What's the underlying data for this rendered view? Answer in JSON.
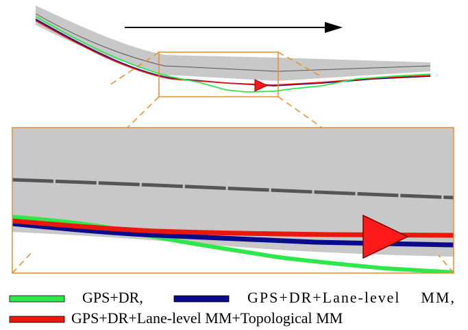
{
  "legend": {
    "gps_dr": "GPS+DR,",
    "lane_level": "GPS+DR+Lane-level    MM,",
    "topological": "GPS+DR+Lane-level MM+Topological MM"
  },
  "colors": {
    "gps_dr": "#2ee84a",
    "lane_level": "#0a0a8c",
    "topological": "#e8180c",
    "road": "#c8c8c8",
    "centerline": "#555555",
    "zoom_frame": "#f08a24",
    "direction_arrow": "#000000",
    "vehicle_marker": "#ff1a1a"
  },
  "icons": {
    "direction": "right-arrow",
    "vehicle": "triangle-marker"
  }
}
